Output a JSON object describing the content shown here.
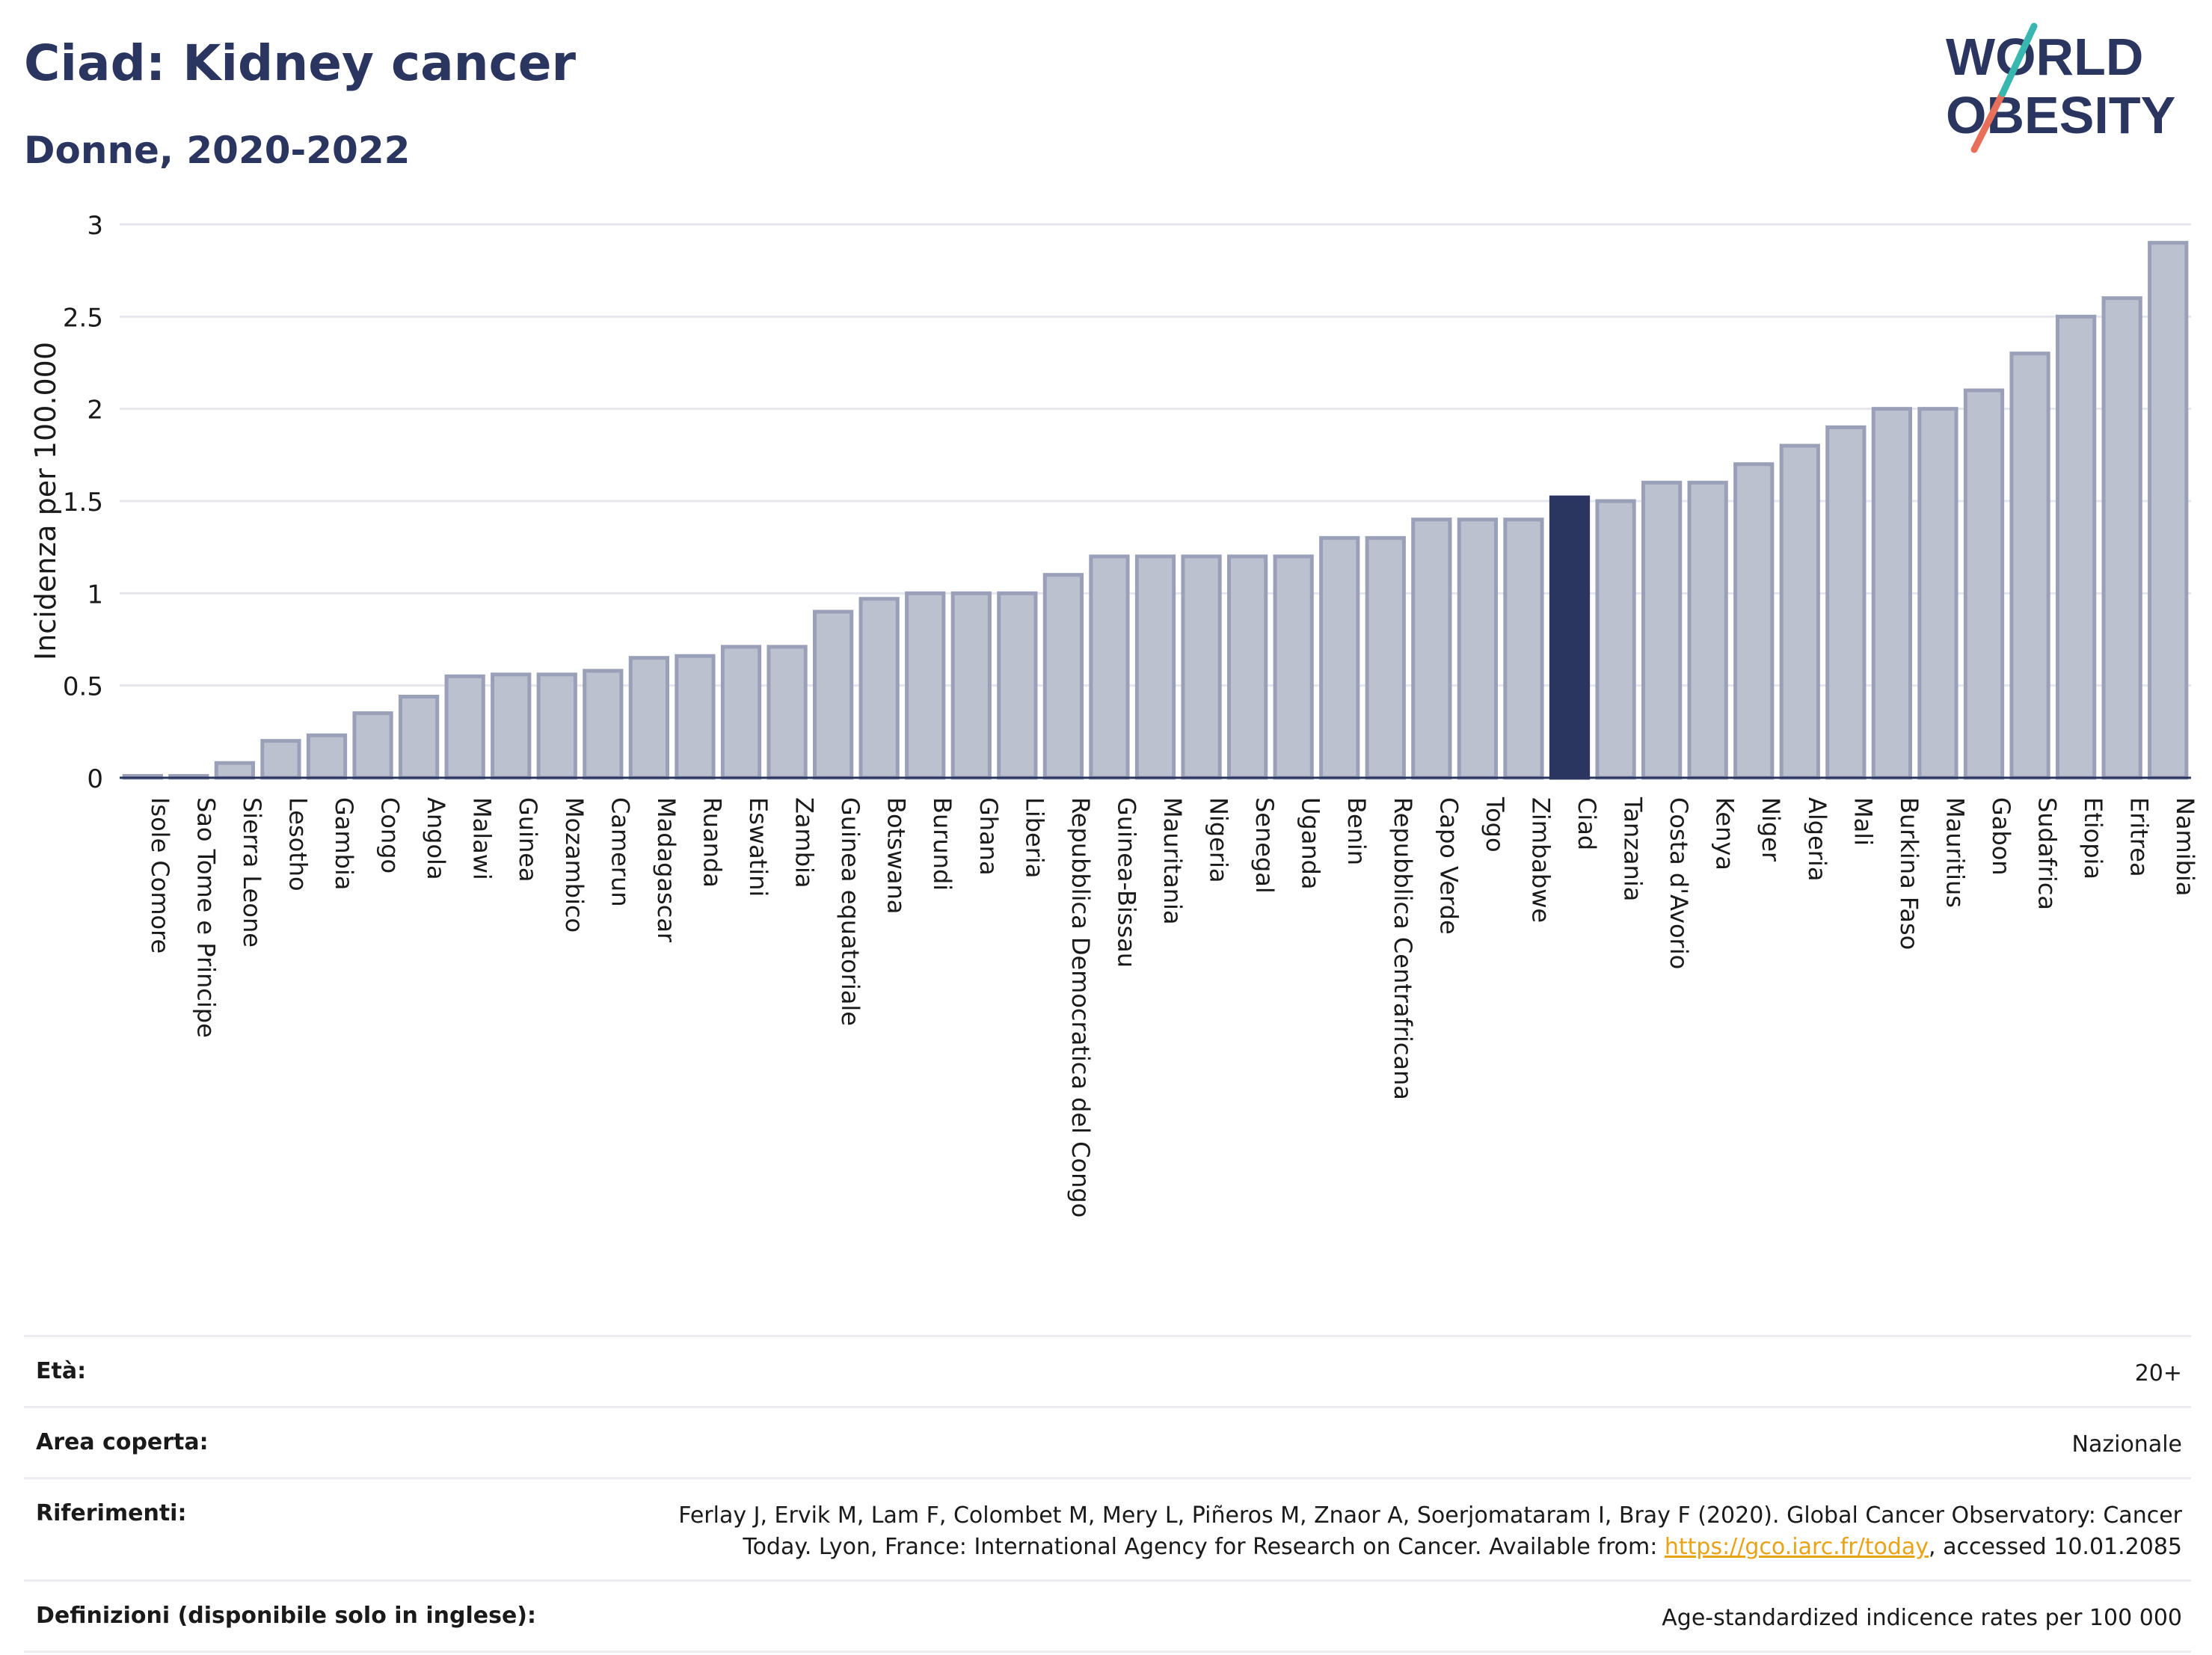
{
  "header": {
    "title": "Ciad: Kidney cancer",
    "subtitle": "Donne, 2020-2022"
  },
  "logo": {
    "line1": "WORLD",
    "line2": "OBESITY"
  },
  "chart_data": {
    "type": "bar",
    "ylabel": "Incidenza per 100.000",
    "ylim": [
      0,
      3
    ],
    "yticks": [
      0,
      0.5,
      1,
      1.5,
      2,
      2.5,
      3
    ],
    "ytick_labels": [
      "0",
      "0.5",
      "1",
      "1.5",
      "2",
      "2.5",
      "3"
    ],
    "grid": true,
    "highlight": "Ciad",
    "colors": {
      "bar": "#bcc1d0",
      "bar_edge": "#9aa0b8",
      "highlight": "#2a3560"
    },
    "categories": [
      "Isole Comore",
      "Sao Tome e Principe",
      "Sierra Leone",
      "Lesotho",
      "Gambia",
      "Congo",
      "Angola",
      "Malawi",
      "Guinea",
      "Mozambico",
      "Camerun",
      "Madagascar",
      "Ruanda",
      "Eswatini",
      "Zambia",
      "Guinea equatoriale",
      "Botswana",
      "Burundi",
      "Ghana",
      "Liberia",
      "Repubblica Democratica del Congo",
      "Guinea-Bissau",
      "Mauritania",
      "Nigeria",
      "Senegal",
      "Uganda",
      "Benin",
      "Repubblica Centrafricana",
      "Capo Verde",
      "Togo",
      "Zimbabwe",
      "Ciad",
      "Tanzania",
      "Costa d'Avorio",
      "Kenya",
      "Niger",
      "Algeria",
      "Mali",
      "Burkina Faso",
      "Mauritius",
      "Gabon",
      "Sudafrica",
      "Etiopia",
      "Eritrea",
      "Namibia"
    ],
    "values": [
      0.01,
      0.01,
      0.08,
      0.2,
      0.23,
      0.35,
      0.44,
      0.55,
      0.56,
      0.56,
      0.58,
      0.65,
      0.66,
      0.71,
      0.71,
      0.9,
      0.97,
      1.0,
      1.0,
      1.0,
      1.1,
      1.2,
      1.2,
      1.2,
      1.2,
      1.2,
      1.3,
      1.3,
      1.4,
      1.4,
      1.4,
      1.52,
      1.5,
      1.6,
      1.6,
      1.7,
      1.8,
      1.9,
      2.0,
      2.0,
      2.1,
      2.3,
      2.5,
      2.6,
      2.9
    ]
  },
  "info": {
    "age_label": "Età:",
    "age_value": "20+",
    "area_label": "Area coperta:",
    "area_value": "Nazionale",
    "ref_label": "Riferimenti:",
    "ref_text_1": "Ferlay J, Ervik M, Lam F, Colombet M, Mery L, Piñeros M, Znaor A, Soerjomataram I, Bray F (2020). Global Cancer Observatory: Cancer Today. Lyon, France: International Agency for Research on Cancer. Available from: ",
    "ref_link": "https://gco.iarc.fr/today",
    "ref_text_2": ", accessed 10.01.2085",
    "def_label": "Definizioni (disponibile solo in inglese):",
    "def_value": "Age-standardized indicence rates per 100 000"
  }
}
